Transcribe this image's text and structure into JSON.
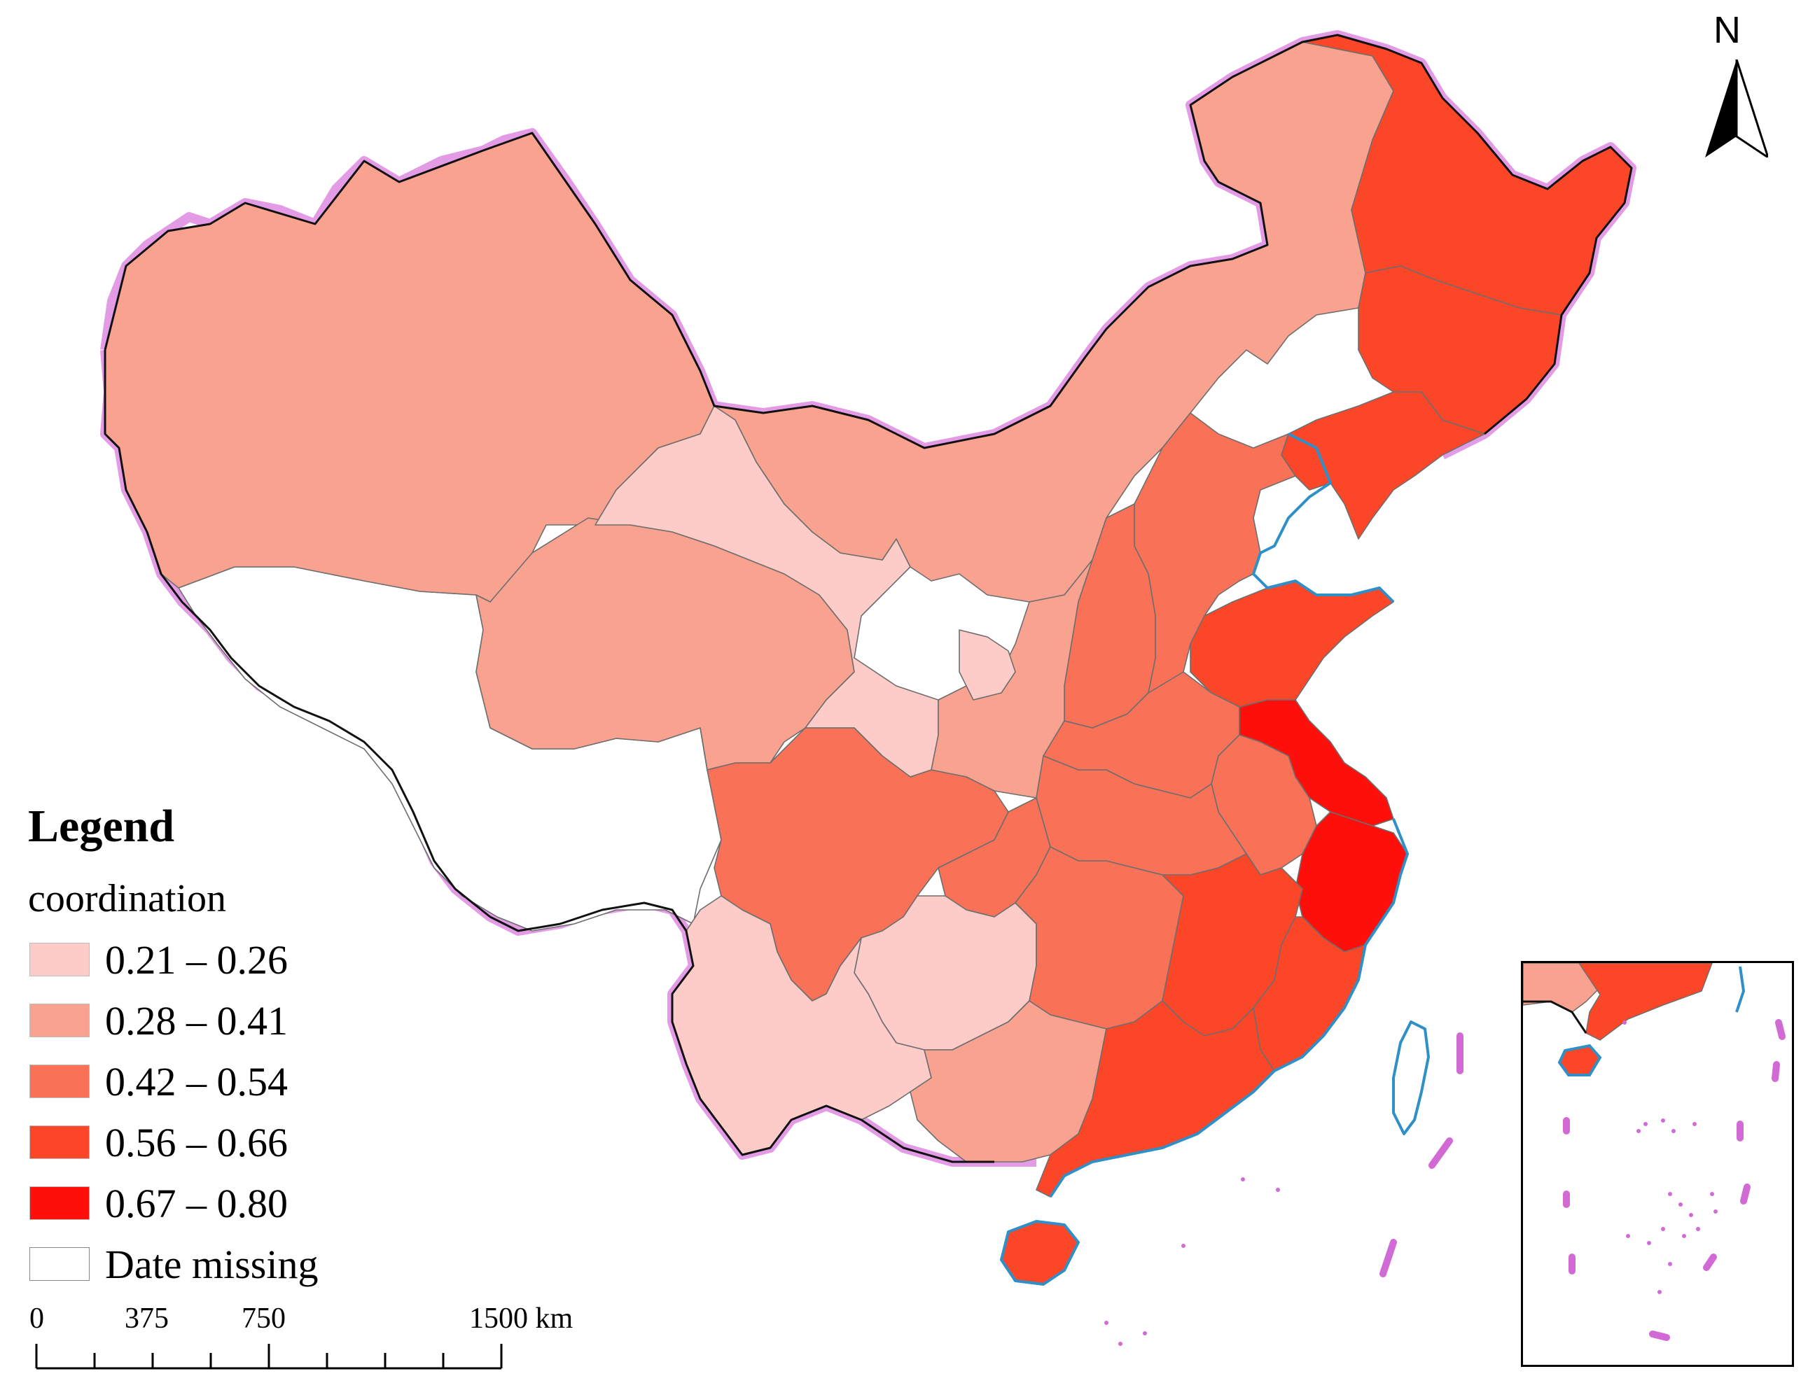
{
  "legend": {
    "title": "Legend",
    "subtitle": "coordination",
    "classes": [
      {
        "label": "0.21 – 0.26",
        "color": "#fdcbc8"
      },
      {
        "label": "0.28 – 0.41",
        "color": "#f9a28f"
      },
      {
        "label": "0.42 – 0.54",
        "color": "#f97257"
      },
      {
        "label": "0.56 – 0.66",
        "color": "#fb4628"
      },
      {
        "label": "0.67 – 0.80",
        "color": "#fe0f0c"
      },
      {
        "label": "Date missing",
        "color": "#ffffff"
      }
    ]
  },
  "scale_bar": {
    "labels": [
      "0",
      "375",
      "750",
      "1500 km"
    ]
  },
  "north_arrow": {
    "label": "N",
    "icon": "north-arrow-icon"
  },
  "colors": {
    "border_glow": "#e39be6",
    "border_line": "#111111",
    "coastline": "#2f8fc7",
    "province_outline": "#6e6e6e"
  }
}
